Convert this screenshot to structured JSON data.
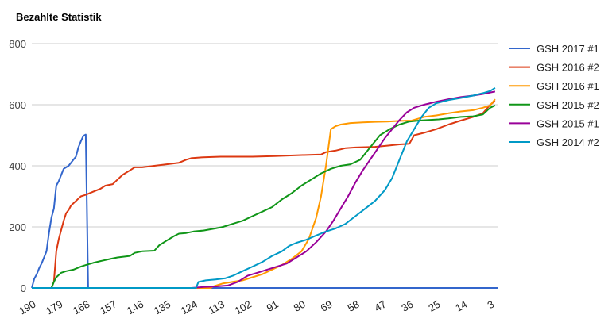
{
  "chart_data": {
    "type": "line",
    "title": "Bezahlte Statistik",
    "xlabel": "",
    "ylabel": "",
    "xlim": [
      190,
      0
    ],
    "ylim": [
      0,
      800
    ],
    "y_ticks": [
      0,
      200,
      400,
      600,
      800
    ],
    "x_ticks": [
      190,
      179,
      168,
      157,
      146,
      135,
      124,
      113,
      102,
      91,
      80,
      69,
      58,
      47,
      36,
      25,
      14,
      3
    ],
    "grid": true,
    "legend_position": "right",
    "series": [
      {
        "name": "GSH 2017 #1",
        "color": "#3366cc",
        "points": [
          [
            190,
            0
          ],
          [
            189,
            30
          ],
          [
            188,
            45
          ],
          [
            187,
            65
          ],
          [
            186,
            80
          ],
          [
            185,
            100
          ],
          [
            184,
            120
          ],
          [
            183,
            180
          ],
          [
            182,
            230
          ],
          [
            181,
            260
          ],
          [
            180,
            335
          ],
          [
            179,
            350
          ],
          [
            178,
            370
          ],
          [
            177,
            390
          ],
          [
            176,
            395
          ],
          [
            175,
            400
          ],
          [
            174,
            410
          ],
          [
            173,
            420
          ],
          [
            172,
            430
          ],
          [
            171,
            460
          ],
          [
            170,
            480
          ],
          [
            169,
            498
          ],
          [
            168,
            502
          ],
          [
            167,
            0
          ],
          [
            0,
            0
          ]
        ]
      },
      {
        "name": "GSH 2016 #2",
        "color": "#dc3912",
        "points": [
          [
            190,
            0
          ],
          [
            182,
            0
          ],
          [
            181,
            20
          ],
          [
            180,
            120
          ],
          [
            179,
            160
          ],
          [
            178,
            190
          ],
          [
            177,
            220
          ],
          [
            176,
            245
          ],
          [
            175,
            255
          ],
          [
            174,
            270
          ],
          [
            172,
            285
          ],
          [
            170,
            300
          ],
          [
            168,
            305
          ],
          [
            165,
            315
          ],
          [
            162,
            325
          ],
          [
            160,
            335
          ],
          [
            157,
            340
          ],
          [
            155,
            355
          ],
          [
            153,
            370
          ],
          [
            150,
            385
          ],
          [
            148,
            395
          ],
          [
            145,
            395
          ],
          [
            140,
            400
          ],
          [
            135,
            405
          ],
          [
            130,
            410
          ],
          [
            127,
            420
          ],
          [
            125,
            425
          ],
          [
            120,
            428
          ],
          [
            113,
            430
          ],
          [
            100,
            430
          ],
          [
            91,
            432
          ],
          [
            80,
            435
          ],
          [
            72,
            437
          ],
          [
            70,
            445
          ],
          [
            66,
            450
          ],
          [
            62,
            458
          ],
          [
            58,
            460
          ],
          [
            50,
            462
          ],
          [
            45,
            466
          ],
          [
            40,
            470
          ],
          [
            36,
            472
          ],
          [
            34,
            500
          ],
          [
            30,
            508
          ],
          [
            25,
            520
          ],
          [
            20,
            535
          ],
          [
            15,
            548
          ],
          [
            10,
            560
          ],
          [
            6,
            572
          ],
          [
            3,
            600
          ],
          [
            1,
            612
          ]
        ]
      },
      {
        "name": "GSH 2016 #1",
        "color": "#ff9900",
        "points": [
          [
            190,
            0
          ],
          [
            117,
            0
          ],
          [
            116,
            5
          ],
          [
            112,
            15
          ],
          [
            108,
            20
          ],
          [
            104,
            25
          ],
          [
            100,
            35
          ],
          [
            96,
            45
          ],
          [
            92,
            60
          ],
          [
            88,
            75
          ],
          [
            84,
            95
          ],
          [
            80,
            120
          ],
          [
            77,
            160
          ],
          [
            74,
            230
          ],
          [
            72,
            300
          ],
          [
            70,
            400
          ],
          [
            68,
            520
          ],
          [
            66,
            530
          ],
          [
            64,
            535
          ],
          [
            60,
            540
          ],
          [
            55,
            542
          ],
          [
            50,
            544
          ],
          [
            45,
            545
          ],
          [
            40,
            547
          ],
          [
            35,
            548
          ],
          [
            30,
            560
          ],
          [
            25,
            565
          ],
          [
            20,
            572
          ],
          [
            15,
            578
          ],
          [
            10,
            582
          ],
          [
            6,
            590
          ],
          [
            3,
            598
          ],
          [
            1,
            618
          ]
        ]
      },
      {
        "name": "GSH 2015 #2",
        "color": "#109618",
        "points": [
          [
            190,
            0
          ],
          [
            182,
            0
          ],
          [
            181,
            20
          ],
          [
            180,
            35
          ],
          [
            178,
            50
          ],
          [
            176,
            55
          ],
          [
            173,
            60
          ],
          [
            170,
            70
          ],
          [
            168,
            75
          ],
          [
            165,
            82
          ],
          [
            162,
            88
          ],
          [
            158,
            95
          ],
          [
            155,
            100
          ],
          [
            150,
            105
          ],
          [
            148,
            115
          ],
          [
            145,
            120
          ],
          [
            140,
            122
          ],
          [
            138,
            140
          ],
          [
            135,
            155
          ],
          [
            132,
            170
          ],
          [
            130,
            178
          ],
          [
            127,
            180
          ],
          [
            124,
            185
          ],
          [
            120,
            188
          ],
          [
            115,
            195
          ],
          [
            112,
            200
          ],
          [
            108,
            210
          ],
          [
            104,
            220
          ],
          [
            100,
            235
          ],
          [
            96,
            250
          ],
          [
            92,
            265
          ],
          [
            88,
            290
          ],
          [
            84,
            310
          ],
          [
            80,
            335
          ],
          [
            76,
            355
          ],
          [
            72,
            375
          ],
          [
            68,
            390
          ],
          [
            64,
            400
          ],
          [
            60,
            405
          ],
          [
            56,
            420
          ],
          [
            52,
            460
          ],
          [
            48,
            500
          ],
          [
            44,
            520
          ],
          [
            40,
            535
          ],
          [
            36,
            545
          ],
          [
            32,
            548
          ],
          [
            28,
            550
          ],
          [
            24,
            552
          ],
          [
            20,
            555
          ],
          [
            15,
            560
          ],
          [
            10,
            562
          ],
          [
            6,
            568
          ],
          [
            3,
            590
          ],
          [
            1,
            598
          ]
        ]
      },
      {
        "name": "GSH 2015 #1",
        "color": "#990099",
        "points": [
          [
            190,
            0
          ],
          [
            125,
            0
          ],
          [
            120,
            3
          ],
          [
            115,
            5
          ],
          [
            110,
            8
          ],
          [
            106,
            20
          ],
          [
            102,
            40
          ],
          [
            98,
            50
          ],
          [
            94,
            60
          ],
          [
            90,
            70
          ],
          [
            86,
            80
          ],
          [
            82,
            100
          ],
          [
            78,
            120
          ],
          [
            74,
            150
          ],
          [
            70,
            185
          ],
          [
            67,
            220
          ],
          [
            64,
            260
          ],
          [
            61,
            300
          ],
          [
            58,
            345
          ],
          [
            55,
            385
          ],
          [
            52,
            420
          ],
          [
            49,
            455
          ],
          [
            46,
            490
          ],
          [
            43,
            520
          ],
          [
            40,
            550
          ],
          [
            37,
            575
          ],
          [
            34,
            590
          ],
          [
            30,
            600
          ],
          [
            25,
            610
          ],
          [
            20,
            618
          ],
          [
            15,
            625
          ],
          [
            10,
            630
          ],
          [
            6,
            635
          ],
          [
            3,
            640
          ],
          [
            1,
            643
          ]
        ]
      },
      {
        "name": "GSH 2014 #2",
        "color": "#0099c6",
        "points": [
          [
            190,
            0
          ],
          [
            123,
            0
          ],
          [
            122,
            20
          ],
          [
            119,
            25
          ],
          [
            115,
            28
          ],
          [
            111,
            32
          ],
          [
            108,
            40
          ],
          [
            104,
            55
          ],
          [
            100,
            70
          ],
          [
            96,
            85
          ],
          [
            92,
            105
          ],
          [
            88,
            120
          ],
          [
            85,
            138
          ],
          [
            82,
            148
          ],
          [
            78,
            158
          ],
          [
            74,
            172
          ],
          [
            70,
            185
          ],
          [
            66,
            195
          ],
          [
            62,
            210
          ],
          [
            58,
            235
          ],
          [
            54,
            260
          ],
          [
            50,
            285
          ],
          [
            46,
            320
          ],
          [
            43,
            360
          ],
          [
            40,
            420
          ],
          [
            37,
            480
          ],
          [
            34,
            520
          ],
          [
            31,
            560
          ],
          [
            28,
            590
          ],
          [
            25,
            605
          ],
          [
            20,
            615
          ],
          [
            15,
            622
          ],
          [
            10,
            630
          ],
          [
            6,
            638
          ],
          [
            3,
            645
          ],
          [
            1,
            655
          ]
        ]
      }
    ]
  }
}
